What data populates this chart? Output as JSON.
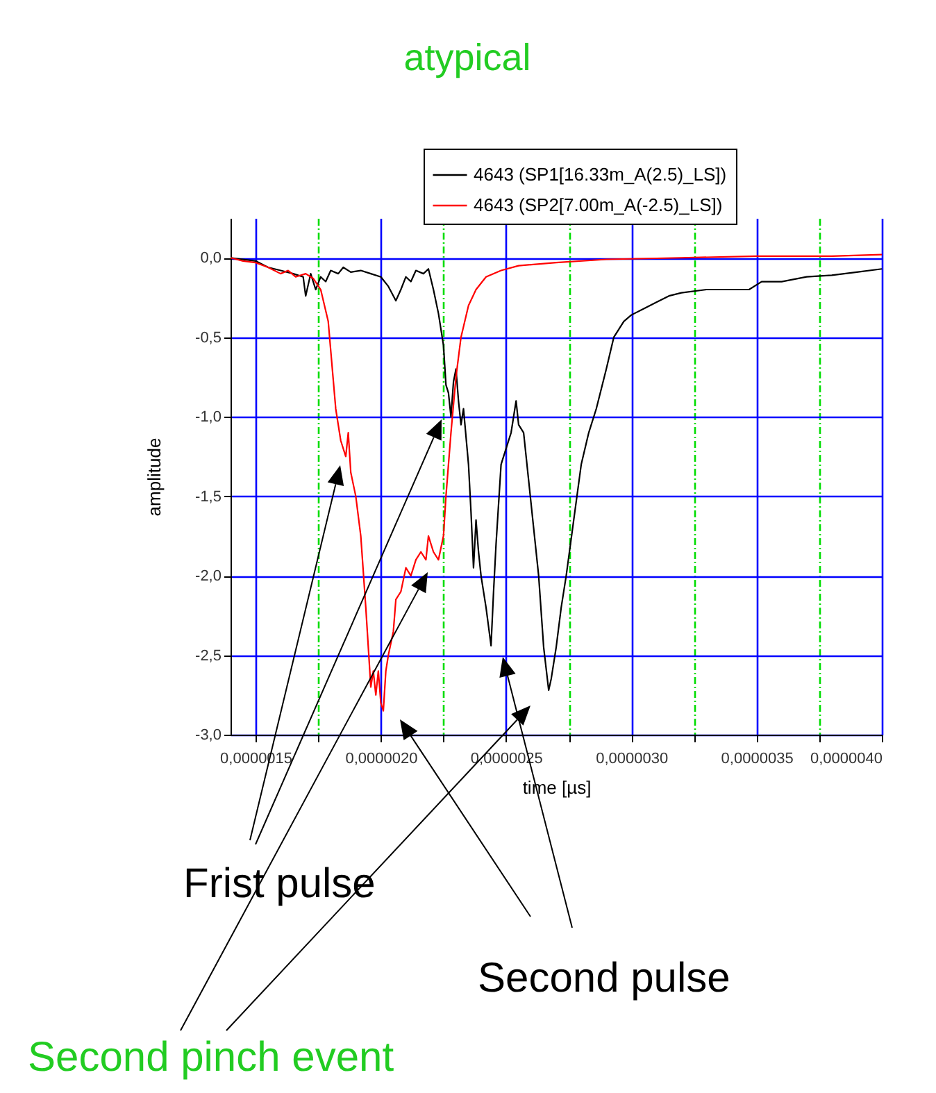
{
  "chart_data": {
    "type": "line",
    "title": "atypical",
    "xlabel": "time [µs]",
    "ylabel": "amplitude",
    "xlim": [
      1.4e-06,
      4e-06
    ],
    "ylim": [
      -3.0,
      0.25
    ],
    "xticks": [
      {
        "value": 1.5e-06,
        "label": "0,0000015"
      },
      {
        "value": 1.75e-06,
        "label": null
      },
      {
        "value": 2e-06,
        "label": "0,0000020"
      },
      {
        "value": 2.25e-06,
        "label": null
      },
      {
        "value": 2.5e-06,
        "label": "0,0000025"
      },
      {
        "value": 2.75e-06,
        "label": null
      },
      {
        "value": 3e-06,
        "label": "0,0000030"
      },
      {
        "value": 3.25e-06,
        "label": null
      },
      {
        "value": 3.5e-06,
        "label": "0,0000035"
      },
      {
        "value": 3.75e-06,
        "label": null
      },
      {
        "value": 4e-06,
        "label": "0,0000040"
      }
    ],
    "yticks": [
      {
        "value": 0,
        "label": "0,0"
      },
      {
        "value": -0.5,
        "label": "-0,5"
      },
      {
        "value": -1.0,
        "label": "-1,0"
      },
      {
        "value": -1.5,
        "label": "-1,5"
      },
      {
        "value": -2.0,
        "label": "-2,0"
      },
      {
        "value": -2.5,
        "label": "-2,5"
      },
      {
        "value": -3.0,
        "label": "-3,0"
      }
    ],
    "grid": true,
    "legend": "top right",
    "line_style": "solid",
    "marker": "none",
    "annotations": [
      "Frist pulse",
      "Second pulse",
      "Second pinch event"
    ],
    "series": [
      {
        "name": "4643 (SP1[16.33m_A(2.5)_LS])",
        "color": "#000000",
        "x": [
          1.4e-06,
          1.5e-06,
          1.55e-06,
          1.6e-06,
          1.65e-06,
          1.69e-06,
          1.7e-06,
          1.72e-06,
          1.74e-06,
          1.76e-06,
          1.78e-06,
          1.8e-06,
          1.83e-06,
          1.85e-06,
          1.88e-06,
          1.92e-06,
          1.96e-06,
          2e-06,
          2.03e-06,
          2.06e-06,
          2.08e-06,
          2.1e-06,
          2.12e-06,
          2.14e-06,
          2.17e-06,
          2.19e-06,
          2.21e-06,
          2.23e-06,
          2.25e-06,
          2.26e-06,
          2.27e-06,
          2.28e-06,
          2.29e-06,
          2.3e-06,
          2.31e-06,
          2.32e-06,
          2.33e-06,
          2.35e-06,
          2.36e-06,
          2.37e-06,
          2.38e-06,
          2.39e-06,
          2.4e-06,
          2.42e-06,
          2.44e-06,
          2.45e-06,
          2.46e-06,
          2.48e-06,
          2.5e-06,
          2.52e-06,
          2.54e-06,
          2.55e-06,
          2.57e-06,
          2.59e-06,
          2.61e-06,
          2.63e-06,
          2.65e-06,
          2.67e-06,
          2.68e-06,
          2.7e-06,
          2.72e-06,
          2.74e-06,
          2.77e-06,
          2.8e-06,
          2.83e-06,
          2.86e-06,
          2.9e-06,
          2.93e-06,
          2.97e-06,
          3e-06,
          3.05e-06,
          3.1e-06,
          3.15e-06,
          3.2e-06,
          3.3e-06,
          3.4e-06,
          3.47e-06,
          3.52e-06,
          3.6e-06,
          3.7e-06,
          3.8e-06,
          3.9e-06,
          4e-06
        ],
        "values": [
          0,
          -0.02,
          -0.06,
          -0.08,
          -0.1,
          -0.12,
          -0.24,
          -0.1,
          -0.2,
          -0.12,
          -0.15,
          -0.08,
          -0.1,
          -0.06,
          -0.09,
          -0.08,
          -0.1,
          -0.12,
          -0.18,
          -0.27,
          -0.2,
          -0.12,
          -0.15,
          -0.08,
          -0.1,
          -0.07,
          -0.2,
          -0.35,
          -0.55,
          -0.8,
          -0.85,
          -1.0,
          -0.78,
          -0.7,
          -0.9,
          -1.05,
          -0.95,
          -1.3,
          -1.6,
          -1.95,
          -1.65,
          -1.85,
          -2.0,
          -2.2,
          -2.44,
          -2.1,
          -1.8,
          -1.3,
          -1.2,
          -1.1,
          -0.9,
          -1.05,
          -1.1,
          -1.4,
          -1.7,
          -2.0,
          -2.45,
          -2.72,
          -2.65,
          -2.45,
          -2.2,
          -2.0,
          -1.65,
          -1.3,
          -1.1,
          -0.95,
          -0.7,
          -0.5,
          -0.4,
          -0.36,
          -0.32,
          -0.28,
          -0.24,
          -0.22,
          -0.2,
          -0.2,
          -0.2,
          -0.15,
          -0.15,
          -0.12,
          -0.11,
          -0.09,
          -0.07
        ]
      },
      {
        "name": "4643 (SP2[7.00m_A(-2.5)_LS])",
        "color": "#ff0000",
        "x": [
          1.4e-06,
          1.45e-06,
          1.5e-06,
          1.55e-06,
          1.6e-06,
          1.63e-06,
          1.66e-06,
          1.7e-06,
          1.73e-06,
          1.76e-06,
          1.79e-06,
          1.82e-06,
          1.84e-06,
          1.86e-06,
          1.87e-06,
          1.88e-06,
          1.9e-06,
          1.92e-06,
          1.94e-06,
          1.96e-06,
          1.97e-06,
          1.98e-06,
          1.99e-06,
          2e-06,
          2.01e-06,
          2.02e-06,
          2.03e-06,
          2.05e-06,
          2.06e-06,
          2.08e-06,
          2.1e-06,
          2.12e-06,
          2.14e-06,
          2.16e-06,
          2.18e-06,
          2.19e-06,
          2.21e-06,
          2.23e-06,
          2.25e-06,
          2.26e-06,
          2.28e-06,
          2.3e-06,
          2.32e-06,
          2.35e-06,
          2.38e-06,
          2.42e-06,
          2.48e-06,
          2.55e-06,
          2.7e-06,
          2.9e-06,
          3.2e-06,
          3.5e-06,
          3.8e-06,
          4e-06
        ],
        "values": [
          0,
          -0.02,
          -0.03,
          -0.06,
          -0.1,
          -0.08,
          -0.12,
          -0.1,
          -0.13,
          -0.2,
          -0.4,
          -0.95,
          -1.15,
          -1.25,
          -1.1,
          -1.35,
          -1.5,
          -1.75,
          -2.2,
          -2.7,
          -2.6,
          -2.75,
          -2.6,
          -2.8,
          -2.85,
          -2.6,
          -2.5,
          -2.35,
          -2.15,
          -2.1,
          -1.95,
          -2.0,
          -1.9,
          -1.85,
          -1.9,
          -1.75,
          -1.85,
          -1.9,
          -1.75,
          -1.5,
          -1.1,
          -0.75,
          -0.5,
          -0.3,
          -0.2,
          -0.12,
          -0.08,
          -0.05,
          -0.03,
          -0.01,
          0.0,
          0.01,
          0.01,
          0.02
        ]
      }
    ]
  }
}
